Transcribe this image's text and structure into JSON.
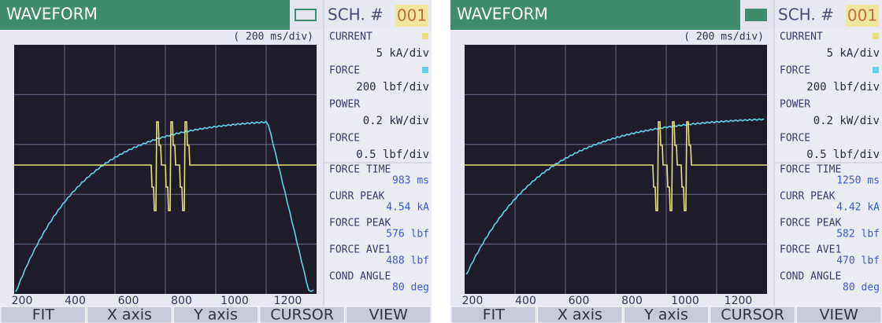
{
  "panels": [
    {
      "header": {
        "title": "WAVEFORM",
        "schedule_label": "SCH. #",
        "schedule": "001"
      },
      "scale": "( 200 ms/div)",
      "x_axis_labels": [
        "200",
        "400",
        "600",
        "800",
        "1000",
        "1200"
      ],
      "settings": [
        {
          "label": "CURRENT",
          "value": "5 kA/div"
        },
        {
          "label": "FORCE",
          "value": "200 lbf/div"
        },
        {
          "label": "POWER",
          "value": "0.2 kW/div"
        },
        {
          "label": "FORCE",
          "value": "0.5 lbf/div"
        }
      ],
      "results": [
        {
          "label": "FORCE TIME",
          "value": "983 ms"
        },
        {
          "label": "CURR PEAK",
          "value": "4.54 kA"
        },
        {
          "label": "FORCE PEAK",
          "value": "576 lbf"
        },
        {
          "label": "FORCE AVE1",
          "value": "488 lbf"
        },
        {
          "label": "COND ANGLE",
          "value": "80 deg"
        }
      ],
      "buttons": [
        "FIT",
        "X axis",
        "Y axis",
        "CURSOR",
        "VIEW"
      ]
    },
    {
      "header": {
        "title": "WAVEFORM",
        "schedule_label": "SCH. #",
        "schedule": "001"
      },
      "scale": "( 200 ms/div)",
      "x_axis_labels": [
        "200",
        "400",
        "600",
        "800",
        "1000",
        "1200"
      ],
      "settings": [
        {
          "label": "CURRENT",
          "value": "5 kA/div"
        },
        {
          "label": "FORCE",
          "value": "200 lbf/div"
        },
        {
          "label": "POWER",
          "value": "0.2 kW/div"
        },
        {
          "label": "FORCE",
          "value": "0.5 lbf/div"
        }
      ],
      "results": [
        {
          "label": "FORCE TIME",
          "value": "1250 ms"
        },
        {
          "label": "CURR PEAK",
          "value": "4.42 kA"
        },
        {
          "label": "FORCE PEAK",
          "value": "582 lbf"
        },
        {
          "label": "FORCE AVE1",
          "value": "470 lbf"
        },
        {
          "label": "COND ANGLE",
          "value": "80 deg"
        }
      ],
      "buttons": [
        "FIT",
        "X axis",
        "Y axis",
        "CURSOR",
        "VIEW"
      ]
    }
  ]
}
